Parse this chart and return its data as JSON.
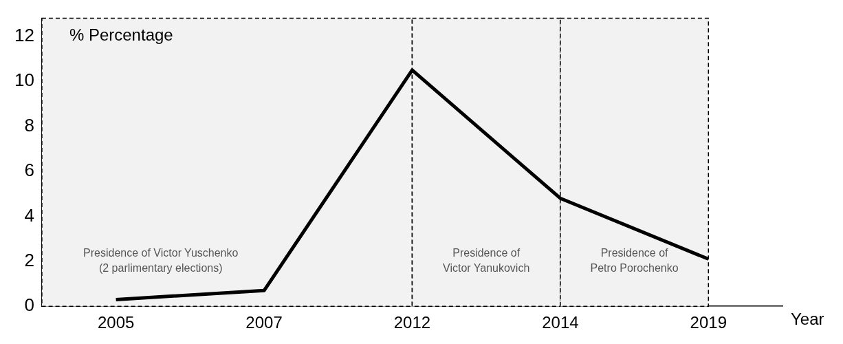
{
  "chart_data": {
    "type": "line",
    "xlabel": "Year",
    "ylabel": "% Percentage",
    "categories": [
      "2005",
      "2007",
      "2012",
      "2014",
      "2019"
    ],
    "series": [
      {
        "color": "#000000",
        "values": [
          0.3,
          0.7,
          10.5,
          4.8,
          2.1
        ]
      }
    ],
    "ylim": [
      0,
      12.8
    ],
    "yticks": [
      0,
      2,
      4,
      6,
      8,
      10,
      12
    ],
    "grid": false,
    "legend": false,
    "marker": "none",
    "line_style": "solid",
    "bands": [
      {
        "axis": "x",
        "from": "2005",
        "to": "2012",
        "label": "Presidence of Victor Yuschenko\n(2 parlimentary elections)",
        "color": "#f2f2f2"
      },
      {
        "axis": "x",
        "from": "2012",
        "to": "2014",
        "label": "Presidence of\nVictor Yanukovich",
        "color": "#f2f2f2"
      },
      {
        "axis": "x",
        "from": "2014",
        "to": "2019",
        "label": "Presidence of\nPetro Porochenko",
        "color": "#f2f2f2"
      }
    ]
  }
}
